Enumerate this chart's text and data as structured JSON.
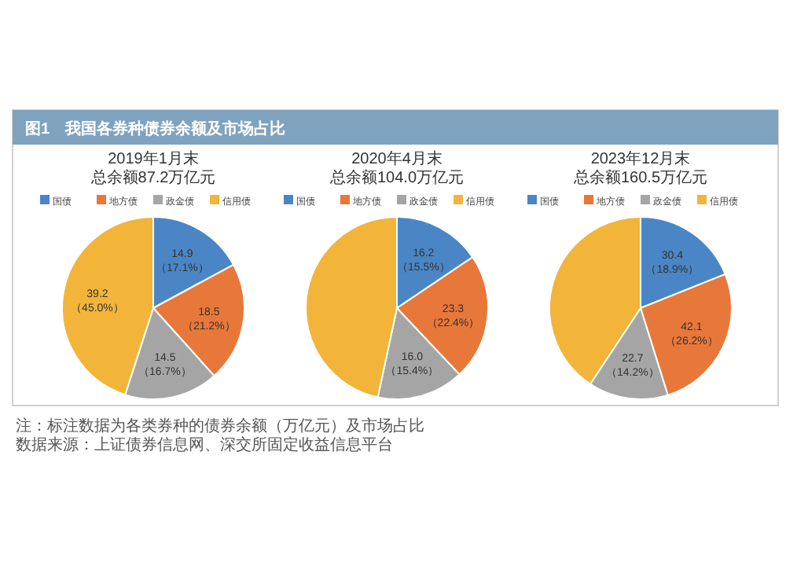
{
  "chart_data": [
    {
      "type": "other",
      "title": "图1　我国各券种债券余额及市场占比",
      "annotations": [
        "注：标注数据为各类券种的债券余额（万亿元）及市场占比",
        "数据来源：上证债券信息网、深交所固定收益信息平台"
      ]
    },
    {
      "type": "pie",
      "title": "2019年1月末",
      "subtitle": "总余额87.2万亿元",
      "categories": [
        "国债",
        "地方债",
        "政金债",
        "信用债"
      ],
      "values": [
        14.9,
        18.5,
        14.5,
        39.2
      ],
      "colors": [
        "#4a86c5",
        "#e8773a",
        "#a5a5a5",
        "#f2b53a"
      ],
      "value_labels": [
        "14.9\n（17.1%）",
        "18.5\n（21.2%）",
        "14.5\n（16.7%）",
        "39.2\n（45.0%）"
      ],
      "legend": "top"
    },
    {
      "type": "pie",
      "title": "2020年4月末",
      "subtitle": "总余额104.0万亿元",
      "categories": [
        "国债",
        "地方债",
        "政金债",
        "信用债"
      ],
      "values": [
        16.2,
        23.3,
        16.0,
        48.5
      ],
      "colors": [
        "#4a86c5",
        "#e8773a",
        "#a5a5a5",
        "#f2b53a"
      ],
      "value_labels": [
        "16.2\n（15.5%）",
        "23.3\n（22.4%）",
        "16.0\n（15.4%）",
        null
      ],
      "legend": "top"
    },
    {
      "type": "pie",
      "title": "2023年12月末",
      "subtitle": "总余额160.5万亿元",
      "categories": [
        "国债",
        "地方债",
        "政金债",
        "信用债"
      ],
      "values": [
        30.4,
        42.1,
        22.7,
        65.3
      ],
      "colors": [
        "#4a86c5",
        "#e8773a",
        "#a5a5a5",
        "#f2b53a"
      ],
      "value_labels": [
        "30.4\n（18.9%）",
        "42.1\n（26.2%）",
        "22.7\n（14.2%）",
        null
      ],
      "legend": "top"
    }
  ]
}
